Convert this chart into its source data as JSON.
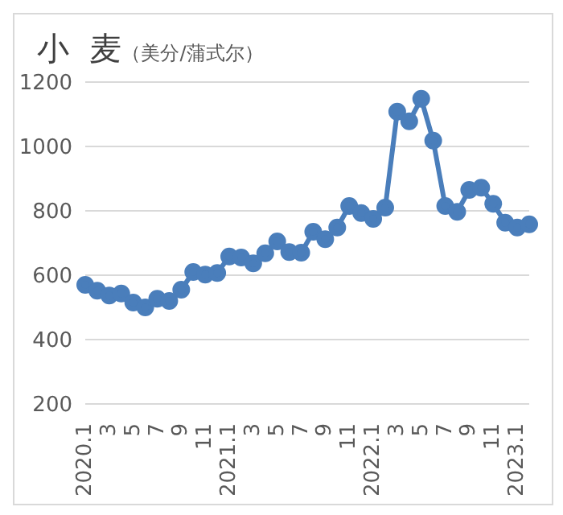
{
  "chart_data": {
    "type": "line",
    "title": "小  麦",
    "subtitle": "（美分/蒲式尔）",
    "categories": [
      "2020.1",
      null,
      "3",
      null,
      "5",
      null,
      "7",
      null,
      "9",
      null,
      "11",
      null,
      "2021.1",
      null,
      "3",
      null,
      "5",
      null,
      "7",
      null,
      "9",
      null,
      "11",
      null,
      "2022.1",
      null,
      "3",
      null,
      "5",
      null,
      "7",
      null,
      "9",
      null,
      "11",
      null,
      "2023.1",
      null
    ],
    "series": [
      {
        "color": "#4a7ebb",
        "values": [
          570,
          552,
          537,
          543,
          515,
          500,
          527,
          520,
          555,
          610,
          602,
          607,
          658,
          655,
          637,
          668,
          705,
          672,
          670,
          735,
          712,
          748,
          815,
          793,
          775,
          810,
          1108,
          1078,
          1148,
          1018,
          815,
          797,
          865,
          872,
          822,
          763,
          748,
          758
        ]
      }
    ],
    "ylim": [
      200,
      1200
    ],
    "yticks": [
      200,
      400,
      600,
      800,
      1000,
      1200
    ],
    "grid": "y",
    "marker": "circle",
    "line_style": "solid",
    "legend": false
  }
}
